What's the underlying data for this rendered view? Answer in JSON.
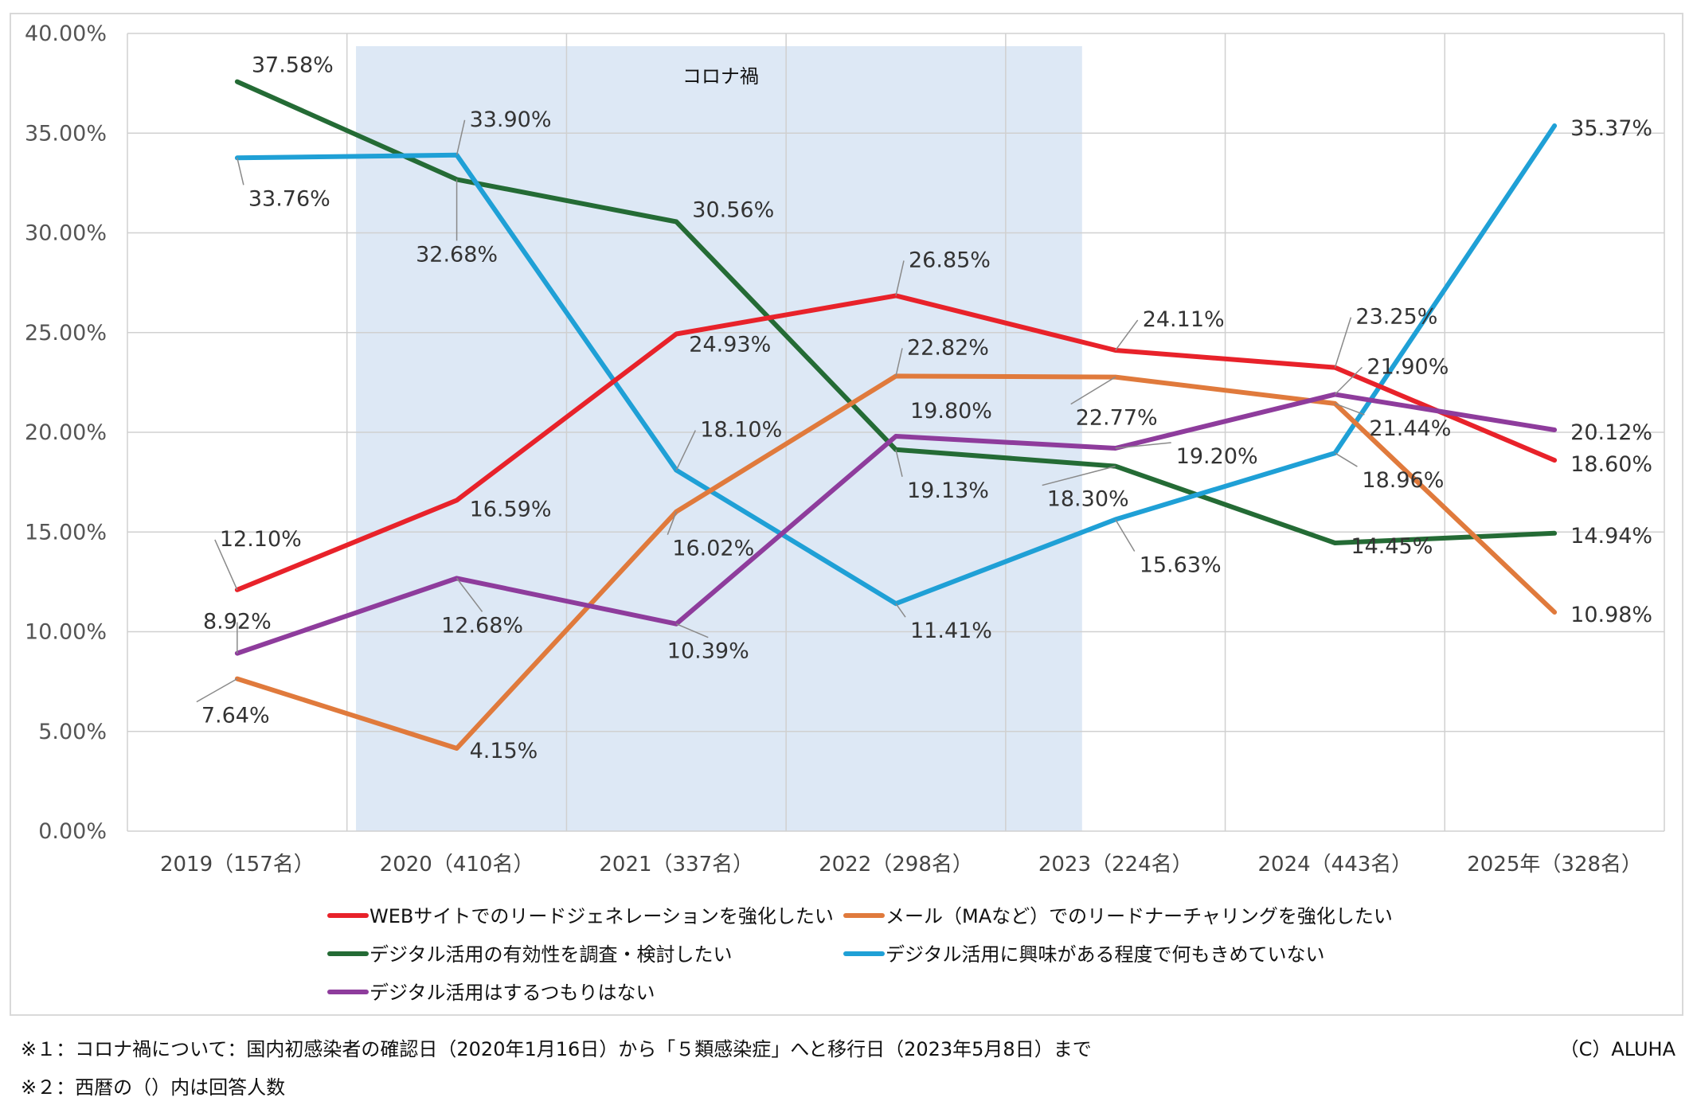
{
  "chart_data": {
    "type": "line",
    "categories": [
      "2019（157名）",
      "2020（410名）",
      "2021（337名）",
      "2022（298名）",
      "2023（224名）",
      "2024（443名）",
      "2025年（328名）"
    ],
    "ylim": [
      0,
      40
    ],
    "yticks": [
      "0.00%",
      "5.00%",
      "10.00%",
      "15.00%",
      "20.00%",
      "25.00%",
      "30.00%",
      "35.00%",
      "40.00%"
    ],
    "grid": true,
    "legend_position": "bottom",
    "shaded_region": {
      "label": "コロナ禍",
      "from": "2020/01/16",
      "to": "2023/05/08",
      "color": "#dde8f5"
    },
    "series": [
      {
        "name": "WEBサイトでのリードジェネレーションを強化したい",
        "color": "#e8222a",
        "values": [
          12.1,
          16.59,
          24.93,
          26.85,
          24.11,
          23.25,
          18.6
        ],
        "labels": [
          "12.10%",
          "16.59%",
          "24.93%",
          "26.85%",
          "24.11%",
          "23.25%",
          "18.60%"
        ]
      },
      {
        "name": "メール（MAなど）でのリードナーチャリングを強化したい",
        "color": "#e07a3c",
        "values": [
          7.64,
          4.15,
          16.02,
          22.82,
          22.77,
          21.44,
          10.98
        ],
        "labels": [
          "7.64%",
          "4.15%",
          "16.02%",
          "22.82%",
          "22.77%",
          "21.44%",
          "10.98%"
        ]
      },
      {
        "name": "デジタル活用の有効性を調査・検討したい",
        "color": "#246b35",
        "values": [
          37.58,
          32.68,
          30.56,
          19.13,
          18.3,
          14.45,
          14.94
        ],
        "labels": [
          "37.58%",
          "32.68%",
          "30.56%",
          "19.13%",
          "18.30%",
          "14.45%",
          "14.94%"
        ]
      },
      {
        "name": "デジタル活用に興味がある程度で何もきめていない",
        "color": "#1fa0d6",
        "values": [
          33.76,
          33.9,
          18.1,
          11.41,
          15.63,
          18.96,
          35.37
        ],
        "labels": [
          "33.76%",
          "33.90%",
          "18.10%",
          "11.41%",
          "15.63%",
          "18.96%",
          "35.37%"
        ]
      },
      {
        "name": "デジタル活用はするつもりはない",
        "color": "#8e3c9c",
        "values": [
          8.92,
          12.68,
          10.39,
          19.8,
          19.2,
          21.9,
          20.12
        ],
        "labels": [
          "8.92%",
          "12.68%",
          "10.39%",
          "19.80%",
          "19.20%",
          "21.90%",
          "20.12%"
        ]
      }
    ]
  },
  "footnotes": {
    "note1": "※１：コロナ禍について：国内初感染者の確認日（2020年1月16日）から「５類感染症」へと移行日（2023年5月8日）まで",
    "note2": "※２：西暦の（）内は回答人数",
    "copyright": "（C）ALUHA"
  }
}
